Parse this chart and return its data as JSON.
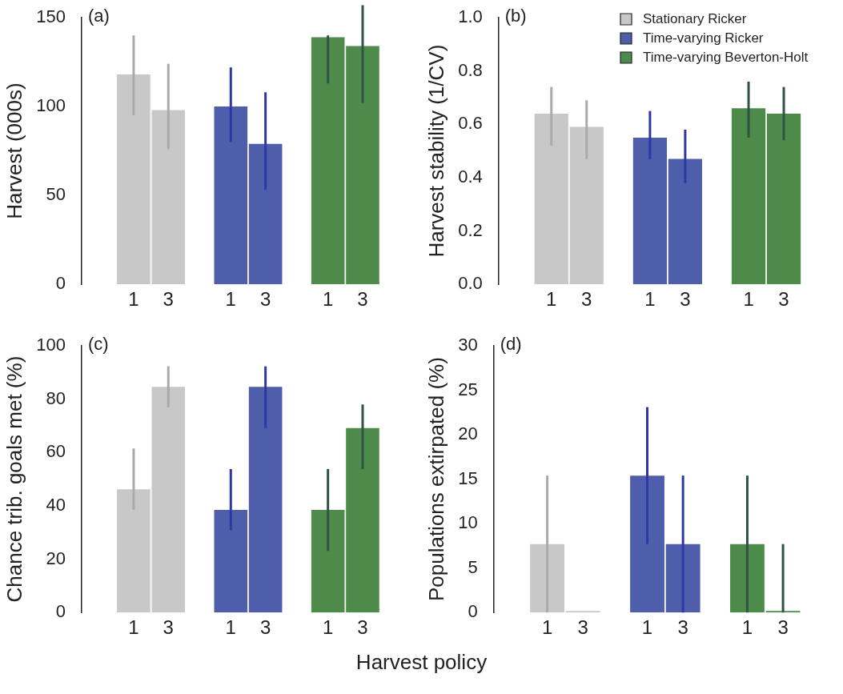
{
  "chart_data": [
    {
      "type": "bar",
      "ylabel": "Harvest (000s)",
      "annotations": [
        "(a)"
      ],
      "categories": [
        "1",
        "3",
        "1",
        "3",
        "1",
        "3"
      ],
      "ylim": [
        0,
        150
      ],
      "yticks": [
        0,
        50,
        100,
        150
      ],
      "grid": false,
      "legend": false,
      "series": [
        {
          "color": "#c8c8c8",
          "values": [
            118,
            98,
            null,
            null,
            null,
            null
          ],
          "errors": [
            [
              95,
              140
            ],
            [
              76,
              124
            ],
            null,
            null,
            null,
            null
          ]
        },
        {
          "color": "#4f5eab",
          "values": [
            null,
            null,
            100,
            79,
            null,
            null
          ],
          "errors": [
            null,
            null,
            [
              80,
              122
            ],
            [
              53,
              108
            ],
            null,
            null
          ]
        },
        {
          "color": "#4e8a4a",
          "values": [
            null,
            null,
            null,
            null,
            139,
            134
          ],
          "errors": [
            null,
            null,
            null,
            null,
            [
              113,
              140
            ],
            [
              102,
              157
            ]
          ]
        }
      ]
    },
    {
      "type": "bar",
      "ylabel": "Harvest stability (1/CV)",
      "annotations": [
        "(b)"
      ],
      "categories": [
        "1",
        "3",
        "1",
        "3",
        "1",
        "3"
      ],
      "ylim": [
        0,
        1
      ],
      "yticks": [
        {
          "value": 0,
          "label": "0.0"
        },
        0.2,
        0.4,
        0.6,
        0.8,
        {
          "value": 1,
          "label": "1.0"
        }
      ],
      "grid": false,
      "legend": "top right",
      "series": [
        {
          "name": "Stationary Ricker",
          "color": "#c8c8c8",
          "values": [
            0.64,
            0.59,
            null,
            null,
            null,
            null
          ],
          "errors": [
            [
              0.52,
              0.74
            ],
            [
              0.47,
              0.69
            ],
            null,
            null,
            null,
            null
          ]
        },
        {
          "name": "Time-varying Ricker",
          "color": "#4f5eab",
          "values": [
            null,
            null,
            0.55,
            0.47,
            null,
            null
          ],
          "errors": [
            null,
            null,
            [
              0.47,
              0.65
            ],
            [
              0.38,
              0.58
            ],
            null,
            null
          ]
        },
        {
          "name": "Time-varying Beverton-Holt",
          "color": "#4e8a4a",
          "values": [
            null,
            null,
            null,
            null,
            0.66,
            0.64
          ],
          "errors": [
            null,
            null,
            null,
            null,
            [
              0.55,
              0.76
            ],
            [
              0.54,
              0.74
            ]
          ]
        }
      ]
    },
    {
      "type": "bar",
      "ylabel": "Chance trib. goals met (%)",
      "xlabel": "Harvest policy",
      "annotations": [
        "(c)"
      ],
      "categories": [
        "1",
        "3",
        "1",
        "3",
        "1",
        "3"
      ],
      "ylim": [
        0,
        100
      ],
      "yticks": [
        0,
        20,
        40,
        60,
        80,
        100
      ],
      "grid": false,
      "legend": false,
      "series": [
        {
          "color": "#c8c8c8",
          "values": [
            46.2,
            84.6,
            null,
            null,
            null,
            null
          ],
          "errors": [
            [
              38.5,
              61.5
            ],
            [
              76.9,
              92.3
            ],
            null,
            null,
            null,
            null
          ]
        },
        {
          "color": "#4f5eab",
          "values": [
            null,
            null,
            38.5,
            84.6,
            null,
            null
          ],
          "errors": [
            null,
            null,
            [
              30.8,
              53.8
            ],
            [
              69.2,
              92.3
            ],
            null,
            null
          ]
        },
        {
          "color": "#4e8a4a",
          "values": [
            null,
            null,
            null,
            null,
            38.5,
            69.2
          ],
          "errors": [
            null,
            null,
            null,
            null,
            [
              23.1,
              53.8
            ],
            [
              53.8,
              78
            ]
          ]
        }
      ]
    },
    {
      "type": "bar",
      "ylabel": "Populations extirpated (%)",
      "annotations": [
        "(d)"
      ],
      "categories": [
        "1",
        "3",
        "1",
        "3",
        "1",
        "3"
      ],
      "ylim": [
        0,
        30
      ],
      "yticks": [
        0,
        5,
        10,
        15,
        20,
        25,
        30
      ],
      "grid": false,
      "legend": false,
      "series": [
        {
          "color": "#c8c8c8",
          "values": [
            7.7,
            0,
            null,
            null,
            null,
            null
          ],
          "errors": [
            [
              0,
              15.4
            ],
            null,
            null,
            null,
            null,
            null
          ]
        },
        {
          "color": "#4f5eab",
          "values": [
            null,
            null,
            15.4,
            7.7,
            null,
            null
          ],
          "errors": [
            null,
            null,
            [
              7.7,
              23.1
            ],
            [
              0,
              15.4
            ],
            null,
            null
          ]
        },
        {
          "color": "#4e8a4a",
          "values": [
            null,
            null,
            null,
            null,
            7.7,
            0
          ],
          "errors": [
            null,
            null,
            null,
            null,
            [
              0,
              15.4
            ],
            [
              0,
              7.7
            ]
          ]
        }
      ]
    }
  ]
}
